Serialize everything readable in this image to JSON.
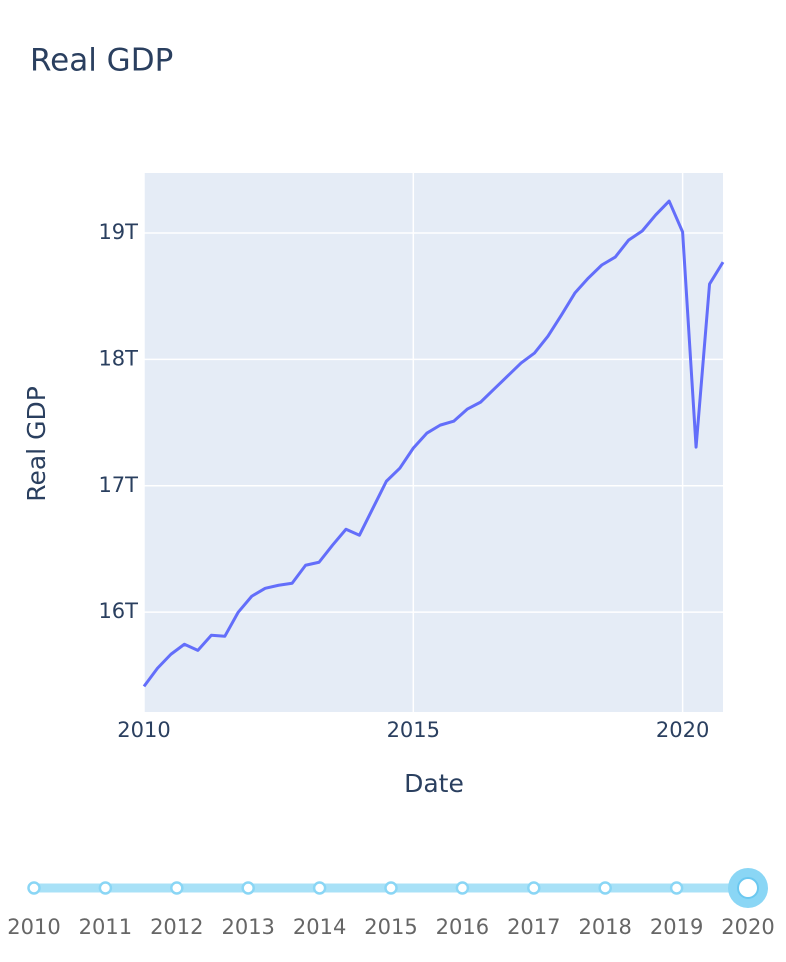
{
  "chart_data": {
    "type": "line",
    "title": "Real GDP",
    "x_label": "Date",
    "y_label": "Real GDP",
    "x": [
      2010,
      2010.25,
      2010.5,
      2010.75,
      2011,
      2011.25,
      2011.5,
      2011.75,
      2012,
      2012.25,
      2012.5,
      2012.75,
      2013,
      2013.25,
      2013.5,
      2013.75,
      2014,
      2014.25,
      2014.5,
      2014.75,
      2015,
      2015.25,
      2015.5,
      2015.75,
      2016,
      2016.25,
      2016.5,
      2016.75,
      2017,
      2017.25,
      2017.5,
      2017.75,
      2018,
      2018.25,
      2018.5,
      2018.75,
      2019,
      2019.25,
      2019.5,
      2019.75,
      2020,
      2020.25,
      2020.5,
      2020.75
    ],
    "series": [
      {
        "name": "Real GDP",
        "color": "#636efa",
        "values": [
          15.413,
          15.556,
          15.667,
          15.746,
          15.698,
          15.817,
          15.809,
          16.0,
          16.126,
          16.189,
          16.213,
          16.229,
          16.371,
          16.395,
          16.53,
          16.656,
          16.609,
          16.823,
          17.036,
          17.139,
          17.298,
          17.416,
          17.48,
          17.511,
          17.606,
          17.662,
          17.765,
          17.868,
          17.971,
          18.05,
          18.184,
          18.351,
          18.525,
          18.644,
          18.747,
          18.81,
          18.945,
          19.016,
          19.143,
          19.253,
          19.008,
          17.306,
          18.596,
          18.77
        ]
      }
    ],
    "xlim": [
      2010,
      2020.75
    ],
    "xticks": [
      2010,
      2015,
      2020
    ],
    "ylim": [
      15.21,
      19.475
    ],
    "yticks": [
      {
        "value": 16,
        "label": "16T"
      },
      {
        "value": 17,
        "label": "17T"
      },
      {
        "value": 18,
        "label": "18T"
      },
      {
        "value": 19,
        "label": "19T"
      }
    ],
    "grid": true,
    "plot_bgcolor": "#e5ecf6",
    "slider": {
      "steps": [
        "2010",
        "2011",
        "2012",
        "2013",
        "2014",
        "2015",
        "2016",
        "2017",
        "2018",
        "2019",
        "2020"
      ],
      "active": 10
    }
  }
}
